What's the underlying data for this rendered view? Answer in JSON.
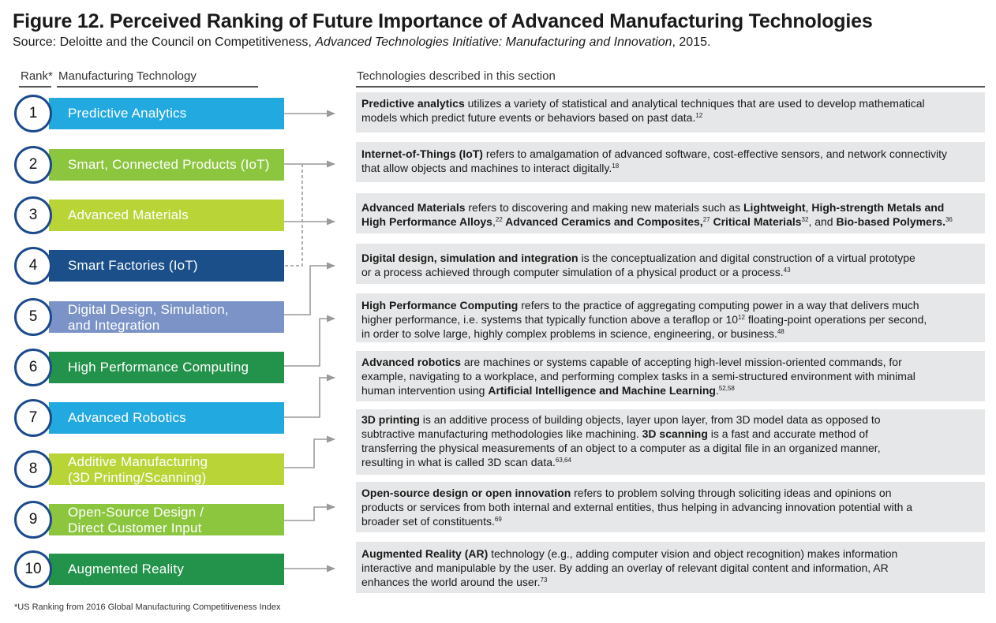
{
  "figure": {
    "title": "Figure 12. Perceived Ranking of Future Importance of Advanced Manufacturing Technologies",
    "source_prefix": "Source: Deloitte and the Council on Competitiveness, ",
    "source_italic": "Advanced Technologies Initiative: Manufacturing and Innovation",
    "source_suffix": ", 2015."
  },
  "headers": {
    "rank": "Rank*",
    "technology": "Manufacturing Technology",
    "described": "Technologies described in this section"
  },
  "colors": {
    "circle_border": "#1c4a8c",
    "arrow": "#9a9a9a",
    "desc_bg": "#e6e7e8"
  },
  "ranks": [
    {
      "rank": "1",
      "label": "Predictive Analytics",
      "color": "#22a9e0"
    },
    {
      "rank": "2",
      "label": "Smart, Connected Products (IoT)",
      "color": "#8cc63f"
    },
    {
      "rank": "3",
      "label": "Advanced Materials",
      "color": "#b9d437"
    },
    {
      "rank": "4",
      "label": "Smart Factories (IoT)",
      "color": "#1b4f8a"
    },
    {
      "rank": "5",
      "label_line1": "Digital Design, Simulation,",
      "label_line2": "and Integration",
      "color": "#7b93c6"
    },
    {
      "rank": "6",
      "label": "High Performance Computing",
      "color": "#23924b"
    },
    {
      "rank": "7",
      "label": "Advanced Robotics",
      "color": "#22a9e0"
    },
    {
      "rank": "8",
      "label_line1": "Additive Manufacturing",
      "label_line2": "(3D Printing/Scanning)",
      "color": "#b9d437"
    },
    {
      "rank": "9",
      "label_line1": "Open-Source Design /",
      "label_line2": "Direct Customer Input",
      "color": "#8cc63f"
    },
    {
      "rank": "10",
      "label": "Augmented Reality",
      "color": "#23924b"
    }
  ],
  "descriptions": [
    {
      "line1_b": "Predictive analytics",
      "line1": " utilizes a variety of statistical and analytical techniques that are used to develop mathematical",
      "line2": "models which predict future events or behaviors based on past data.",
      "line2_sup": "12"
    },
    {
      "line1_b": "Internet-of-Things (IoT)",
      "line1": " refers to amalgamation of advanced software, cost-effective sensors, and network connectivity",
      "line2": "that allow objects and machines to interact digitally.",
      "line2_sup": "18"
    },
    {
      "line1_b": "Advanced Materials",
      "line1": " refers to discovering and making new materials such as ",
      "line1_b2": "Lightweight",
      "line1_c": ", ",
      "line1_b3": "High-strength Metals and",
      "line2_b": "High Performance Alloys",
      "line2_c": ",",
      "line2_sup": "22",
      "line2_b2": " Advanced Ceramics and Composites,",
      "line2_sup2": "27",
      "line2_b3": " Critical Materials",
      "line2_sup3": "32",
      "line2_d": ", and ",
      "line2_b4": "Bio-based Polymers.",
      "line2_sup4": "36"
    },
    {
      "line1_b": "Digital design, simulation and integration",
      "line1": " is the conceptualization and digital construction of a virtual prototype",
      "line2": "or a process achieved through computer simulation of a physical product or a process.",
      "line2_sup": "43"
    },
    {
      "line1_b": "High Performance Computing",
      "line1": " refers to the practice of aggregating computing power in a way that delivers much",
      "line2": "higher performance, i.e. systems that typically function above a teraflop or 10",
      "line2_sup": "12",
      "line2_c": " floating-point operations per second,",
      "line3": "in order to solve large, highly complex problems in science, engineering, or business.",
      "line3_sup": "48"
    },
    {
      "line1_b": "Advanced robotics",
      "line1": " are machines or systems capable of accepting high-level mission-oriented commands, for",
      "line2": "example, navigating to a workplace, and performing complex tasks in a semi-structured environment with minimal",
      "line3": "human intervention using ",
      "line3_b": "Artificial Intelligence and Machine Learning",
      "line3_c": ".",
      "line3_sup": "52,58"
    },
    {
      "line1_b": "3D printing",
      "line1": " is an additive process of building objects, layer upon layer, from 3D model data as opposed to",
      "line2": "subtractive manufacturing methodologies like machining. ",
      "line2_b": "3D scanning",
      "line2_c": " is a fast and accurate method of",
      "line3": "transferring the physical measurements of an object to a computer as a digital file in an organized manner,",
      "line4": "resulting in what is called 3D scan data.",
      "line4_sup": "63,64"
    },
    {
      "line1_b": "Open-source design or open innovation",
      "line1": " refers to problem solving through soliciting ideas and opinions on",
      "line2": "products or services from both internal and external entities, thus helping in advancing innovation potential with a",
      "line3": "broader set of constituents.",
      "line3_sup": "69"
    },
    {
      "line1_b": "Augmented Reality (AR)",
      "line1": " technology (e.g., adding computer vision and object recognition) makes information",
      "line2": "interactive and manipulable by the user. By adding an overlay of relevant digital content and information, AR",
      "line3": "enhances the world around the user.",
      "line3_sup": "73"
    }
  ],
  "footnote": "*US Ranking from 2016 Global Manufacturing Competitiveness Index"
}
